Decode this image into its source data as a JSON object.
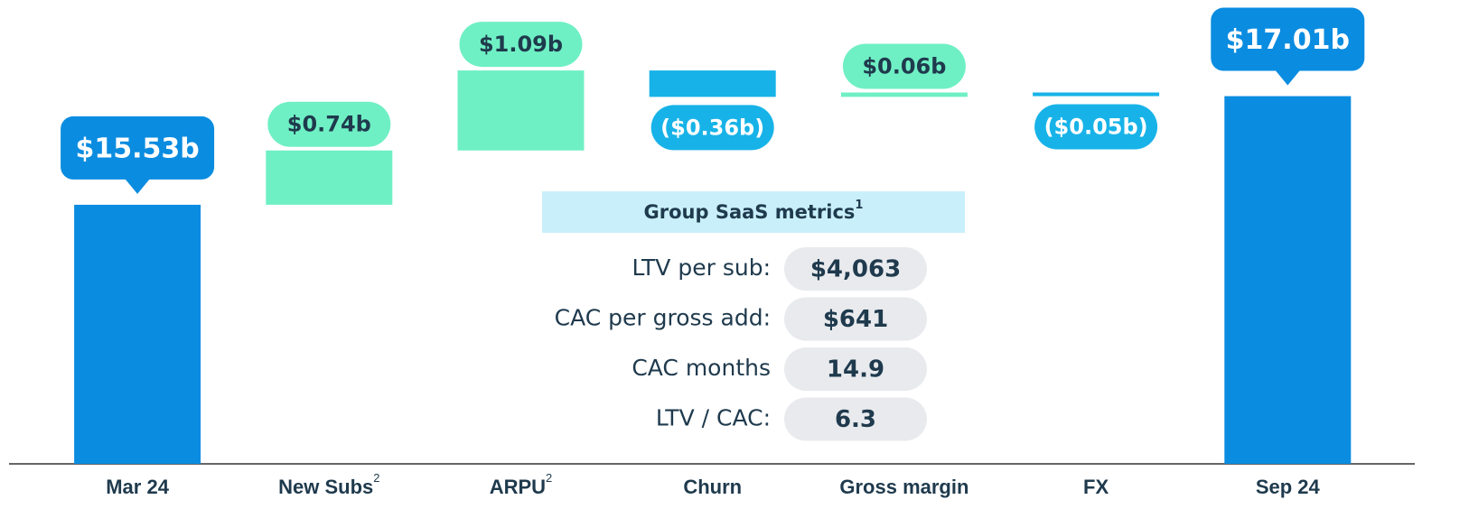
{
  "chart_data": {
    "type": "waterfall",
    "categories": [
      "Mar 24",
      "New Subs",
      "ARPU",
      "Churn",
      "Gross margin",
      "FX",
      "Sep 24"
    ],
    "category_notes": [
      null,
      "2",
      "2",
      null,
      null,
      null,
      null
    ],
    "measure": [
      "absolute",
      "relative",
      "relative",
      "relative",
      "relative",
      "relative",
      "absolute"
    ],
    "values": [
      15.53,
      0.74,
      1.09,
      -0.36,
      0.06,
      -0.05,
      17.01
    ],
    "value_labels": [
      "$15.53b",
      "$0.74b",
      "$1.09b",
      "($0.36b)",
      "$0.06b",
      "($0.05b)",
      "$17.01b"
    ],
    "colors": {
      "total": "#0a8ce0",
      "increase": "#6ff0c4",
      "decrease": "#17b3e8"
    },
    "ylim": [
      12,
      18.32
    ],
    "metrics_box": {
      "title": "Group SaaS metrics",
      "title_note": "1",
      "rows": [
        {
          "label": "LTV per sub:",
          "value": "$4,063"
        },
        {
          "label": "CAC per gross add:",
          "value": "$641"
        },
        {
          "label": "CAC months",
          "value": "14.9"
        },
        {
          "label": "LTV / CAC:",
          "value": "6.3"
        }
      ]
    }
  }
}
